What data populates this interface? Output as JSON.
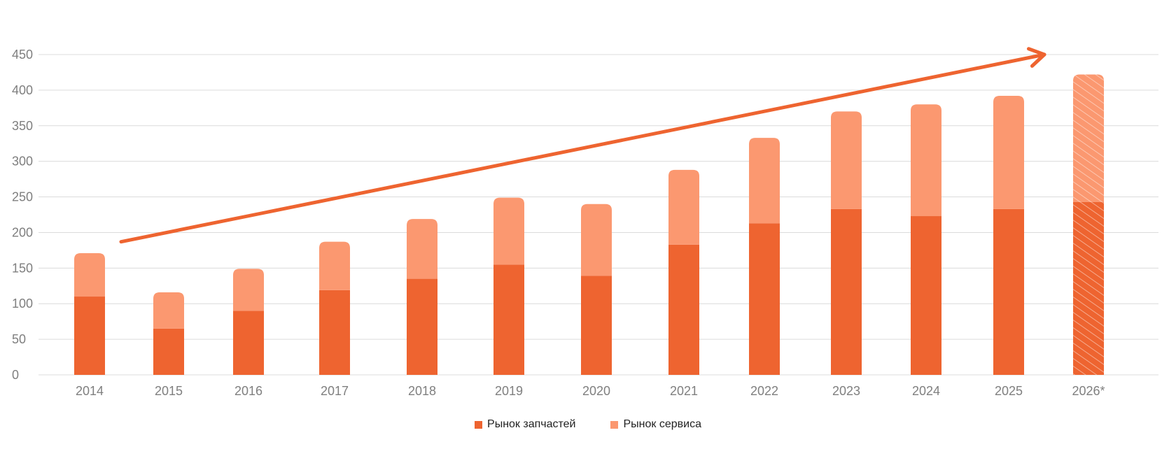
{
  "chart_data": {
    "type": "bar",
    "stacked": true,
    "categories": [
      "2014",
      "2015",
      "2016",
      "2017",
      "2018",
      "2019",
      "2020",
      "2021",
      "2022",
      "2023",
      "2024",
      "2025",
      "2026*"
    ],
    "series": [
      {
        "name": "Рынок запчастей",
        "color": "#ee6430",
        "values": [
          110,
          65,
          90,
          119,
          135,
          155,
          139,
          183,
          213,
          233,
          223,
          233,
          243
        ]
      },
      {
        "name": "Рынок сервиса",
        "color": "#fb9870",
        "values": [
          61,
          51,
          59,
          68,
          84,
          94,
          101,
          105,
          120,
          137,
          157,
          159,
          179
        ]
      }
    ],
    "forecast_categories": [
      "2026*"
    ],
    "forecast_pattern": "hatched",
    "yticks": [
      0,
      50,
      100,
      150,
      200,
      250,
      300,
      350,
      400,
      450
    ],
    "ylim": [
      0,
      450
    ],
    "grid": true,
    "legend_position": "bottom-center",
    "trend_arrow": {
      "from": [
        "2014",
        187
      ],
      "to": [
        "2026*",
        450
      ],
      "color": "#ee6430"
    }
  }
}
